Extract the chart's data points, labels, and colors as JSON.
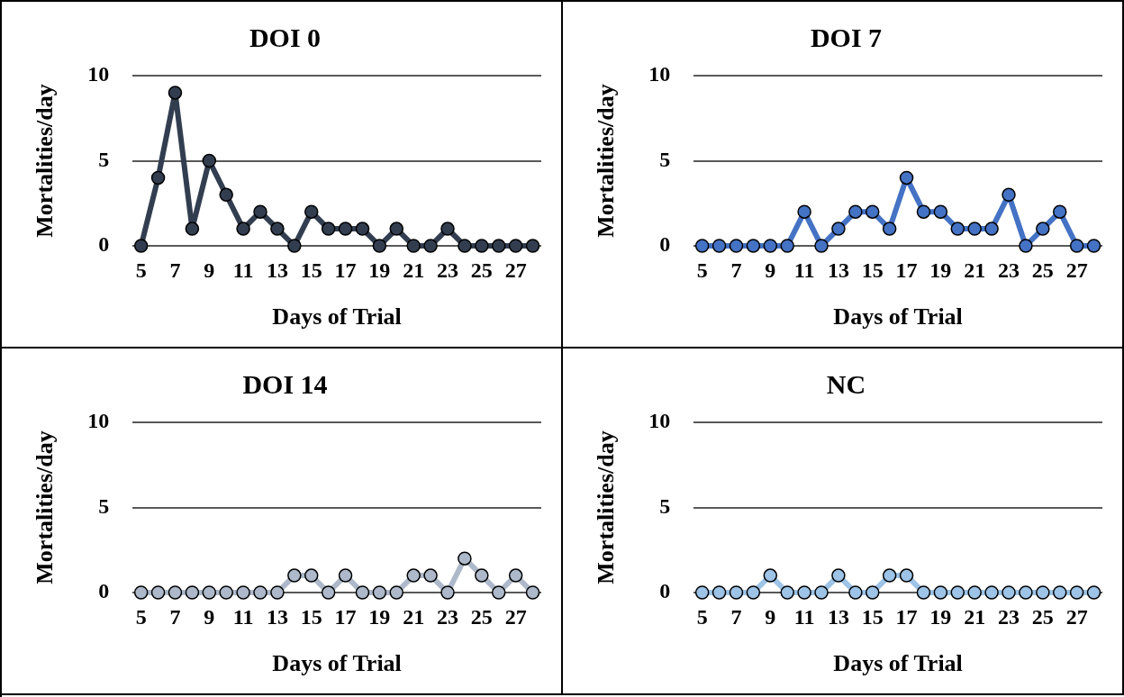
{
  "chart_data": [
    {
      "type": "line",
      "title": "DOI 0",
      "xlabel": "Days of Trial",
      "ylabel": "Mortalities/day",
      "categories": [
        "5",
        null,
        "7",
        null,
        "9",
        null,
        "11",
        null,
        "13",
        null,
        "15",
        null,
        "17",
        null,
        "19",
        null,
        "21",
        null,
        "23",
        null,
        "25",
        null,
        "27",
        null
      ],
      "series": [
        {
          "color": "#323e50",
          "values": [
            0,
            4,
            9,
            1,
            5,
            3,
            1,
            2,
            1,
            0,
            2,
            1,
            1,
            1,
            0,
            1,
            0,
            0,
            1,
            0,
            0,
            0,
            0,
            0
          ]
        }
      ],
      "ylim": [
        0,
        10
      ],
      "yticks": [
        0,
        5,
        10
      ],
      "grid": "y",
      "marker": "circle"
    },
    {
      "type": "line",
      "title": "DOI 7",
      "xlabel": "Days of Trial",
      "ylabel": "Mortalities/day",
      "categories": [
        "5",
        null,
        "7",
        null,
        "9",
        null,
        "11",
        null,
        "13",
        null,
        "15",
        null,
        "17",
        null,
        "19",
        null,
        "21",
        null,
        "23",
        null,
        "25",
        null,
        "27",
        null
      ],
      "series": [
        {
          "color": "#4472c4",
          "values": [
            0,
            0,
            0,
            0,
            0,
            0,
            2,
            0,
            1,
            2,
            2,
            1,
            4,
            2,
            2,
            1,
            1,
            1,
            3,
            0,
            1,
            2,
            0,
            0
          ]
        }
      ],
      "ylim": [
        0,
        10
      ],
      "yticks": [
        0,
        5,
        10
      ],
      "grid": "y",
      "marker": "circle"
    },
    {
      "type": "line",
      "title": "DOI 14",
      "xlabel": "Days of Trial",
      "ylabel": "Mortalities/day",
      "categories": [
        "5",
        null,
        "7",
        null,
        "9",
        null,
        "11",
        null,
        "13",
        null,
        "15",
        null,
        "17",
        null,
        "19",
        null,
        "21",
        null,
        "23",
        null,
        "25",
        null,
        "27",
        null
      ],
      "series": [
        {
          "color": "#adb9ca",
          "values": [
            0,
            0,
            0,
            0,
            0,
            0,
            0,
            0,
            0,
            1,
            1,
            0,
            1,
            0,
            0,
            0,
            1,
            1,
            0,
            2,
            1,
            0,
            1,
            0
          ]
        }
      ],
      "ylim": [
        0,
        10
      ],
      "yticks": [
        0,
        5,
        10
      ],
      "grid": "y",
      "marker": "circle"
    },
    {
      "type": "line",
      "title": "NC",
      "xlabel": "Days of Trial",
      "ylabel": "Mortalities/day",
      "categories": [
        "5",
        null,
        "7",
        null,
        "9",
        null,
        "11",
        null,
        "13",
        null,
        "15",
        null,
        "17",
        null,
        "19",
        null,
        "21",
        null,
        "23",
        null,
        "25",
        null,
        "27",
        null
      ],
      "series": [
        {
          "color": "#9dc3e6",
          "values": [
            0,
            0,
            0,
            0,
            1,
            0,
            0,
            0,
            1,
            0,
            0,
            1,
            1,
            0,
            0,
            0,
            0,
            0,
            0,
            0,
            0,
            0,
            0,
            0
          ]
        }
      ],
      "ylim": [
        0,
        10
      ],
      "yticks": [
        0,
        5,
        10
      ],
      "grid": "y",
      "marker": "circle"
    }
  ]
}
